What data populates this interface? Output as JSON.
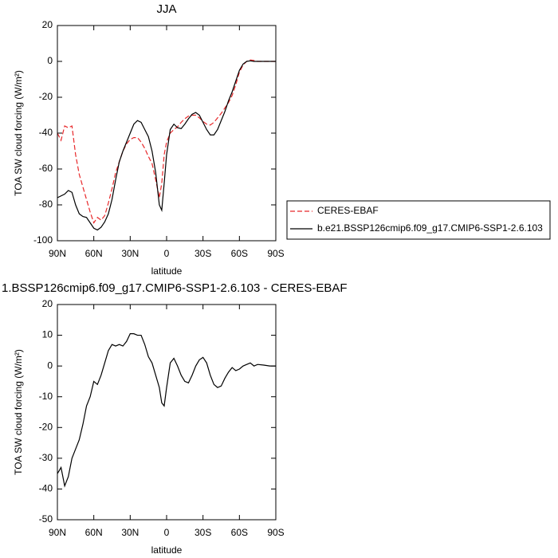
{
  "chart_data": [
    {
      "type": "line",
      "title": "JJA",
      "xlabel": "latitude",
      "ylabel": "TOA SW cloud forcing (W/m²)",
      "xlim": [
        90,
        -90
      ],
      "ylim": [
        -100,
        20
      ],
      "xticks": [
        {
          "value": 90,
          "label": "90N"
        },
        {
          "value": 60,
          "label": "60N"
        },
        {
          "value": 30,
          "label": "30N"
        },
        0,
        {
          "value": -30,
          "label": "30S"
        },
        {
          "value": -60,
          "label": "60S"
        },
        {
          "value": -90,
          "label": "90S"
        }
      ],
      "yticks": [
        -100,
        -80,
        -60,
        -40,
        -20,
        0,
        20
      ],
      "legend": "right",
      "x": [
        90,
        87,
        84,
        81,
        78,
        75,
        72,
        69,
        66,
        63,
        60,
        57,
        54,
        51,
        48,
        45,
        42,
        39,
        36,
        33,
        30,
        27,
        24,
        21,
        18,
        15,
        12,
        9,
        6,
        4,
        2,
        0,
        -3,
        -6,
        -9,
        -12,
        -15,
        -18,
        -21,
        -24,
        -27,
        -30,
        -33,
        -36,
        -39,
        -42,
        -45,
        -48,
        -51,
        -54,
        -57,
        -60,
        -63,
        -66,
        -69,
        -72,
        -75,
        -80,
        -85,
        -90
      ],
      "series": [
        {
          "name": "CERES-EBAF",
          "color": "#e8282a",
          "line_style": "dashed",
          "values": [
            -40,
            -44,
            -36,
            -37,
            -36,
            -52,
            -63,
            -70,
            -77,
            -84,
            -90,
            -87,
            -88.5,
            -86,
            -79,
            -71,
            -62,
            -56,
            -50,
            -46,
            -43.5,
            -42.5,
            -42.5,
            -45,
            -48.5,
            -53,
            -57,
            -66,
            -76,
            -68,
            -52,
            -45,
            -40,
            -38,
            -36.5,
            -34,
            -32,
            -30.5,
            -30,
            -30,
            -31.5,
            -33.5,
            -35,
            -35.5,
            -34,
            -31.5,
            -29,
            -26,
            -23,
            -19,
            -13,
            -6,
            -2,
            0,
            0.8,
            0.5,
            0,
            0,
            0,
            0
          ]
        },
        {
          "name": "b.e21.BSSP126cmip6.f09_g17.CMIP6-SSP1-2.6.103",
          "color": "#000000",
          "line_style": "solid",
          "values": [
            -76,
            -75,
            -74,
            -72,
            -73,
            -80,
            -85,
            -86.5,
            -87,
            -90,
            -93,
            -94,
            -92.5,
            -89.5,
            -85,
            -77,
            -66,
            -56,
            -50,
            -45,
            -40,
            -35,
            -33,
            -34,
            -38,
            -42,
            -50,
            -62,
            -80,
            -83,
            -68,
            -52,
            -38,
            -35,
            -37,
            -37.5,
            -35,
            -32,
            -29.5,
            -28.5,
            -30,
            -34,
            -38,
            -41,
            -41,
            -38,
            -33,
            -28,
            -22,
            -17,
            -11,
            -5,
            -1.5,
            0,
            0.3,
            0,
            0,
            0,
            0,
            0
          ]
        }
      ]
    },
    {
      "type": "line",
      "title": "1.BSSP126cmip6.f09_g17.CMIP6-SSP1-2.6.103 - CERES-EBAF",
      "xlabel": "latitude",
      "ylabel": "TOA SW cloud forcing (W/m²)",
      "xlim": [
        90,
        -90
      ],
      "ylim": [
        -50,
        20
      ],
      "xticks": [
        {
          "value": 90,
          "label": "90N"
        },
        {
          "value": 60,
          "label": "60N"
        },
        {
          "value": 30,
          "label": "30N"
        },
        0,
        {
          "value": -30,
          "label": "30S"
        },
        {
          "value": -60,
          "label": "60S"
        },
        {
          "value": -90,
          "label": "90S"
        }
      ],
      "yticks": [
        -50,
        -40,
        -30,
        -20,
        -10,
        0,
        10,
        20
      ],
      "x": [
        90,
        87,
        84,
        81,
        78,
        75,
        72,
        69,
        66,
        63,
        60,
        57,
        54,
        51,
        48,
        45,
        42,
        39,
        36,
        33,
        30,
        27,
        24,
        21,
        18,
        15,
        12,
        9,
        6,
        4,
        2,
        0,
        -3,
        -6,
        -9,
        -12,
        -15,
        -18,
        -21,
        -24,
        -27,
        -30,
        -33,
        -36,
        -39,
        -42,
        -45,
        -48,
        -51,
        -54,
        -57,
        -60,
        -63,
        -66,
        -69,
        -72,
        -75,
        -80,
        -85,
        -90
      ],
      "series": [
        {
          "color": "#000000",
          "line_style": "solid",
          "values": [
            -35,
            -33,
            -39,
            -36,
            -30,
            -27,
            -24,
            -19,
            -13,
            -10,
            -5,
            -6,
            -3,
            1,
            5,
            7,
            6.5,
            7,
            6.5,
            8,
            10.5,
            10.5,
            10,
            10,
            7,
            3,
            1,
            -3,
            -7,
            -12,
            -13,
            -7,
            1,
            2.5,
            0,
            -3,
            -5,
            -5.5,
            -3,
            0,
            2,
            2.8,
            1,
            -3,
            -6,
            -7,
            -6.5,
            -4,
            -2,
            -0.5,
            -1.5,
            -1,
            0,
            0.5,
            1,
            0,
            0.5,
            0.3,
            0,
            0
          ]
        }
      ]
    }
  ]
}
